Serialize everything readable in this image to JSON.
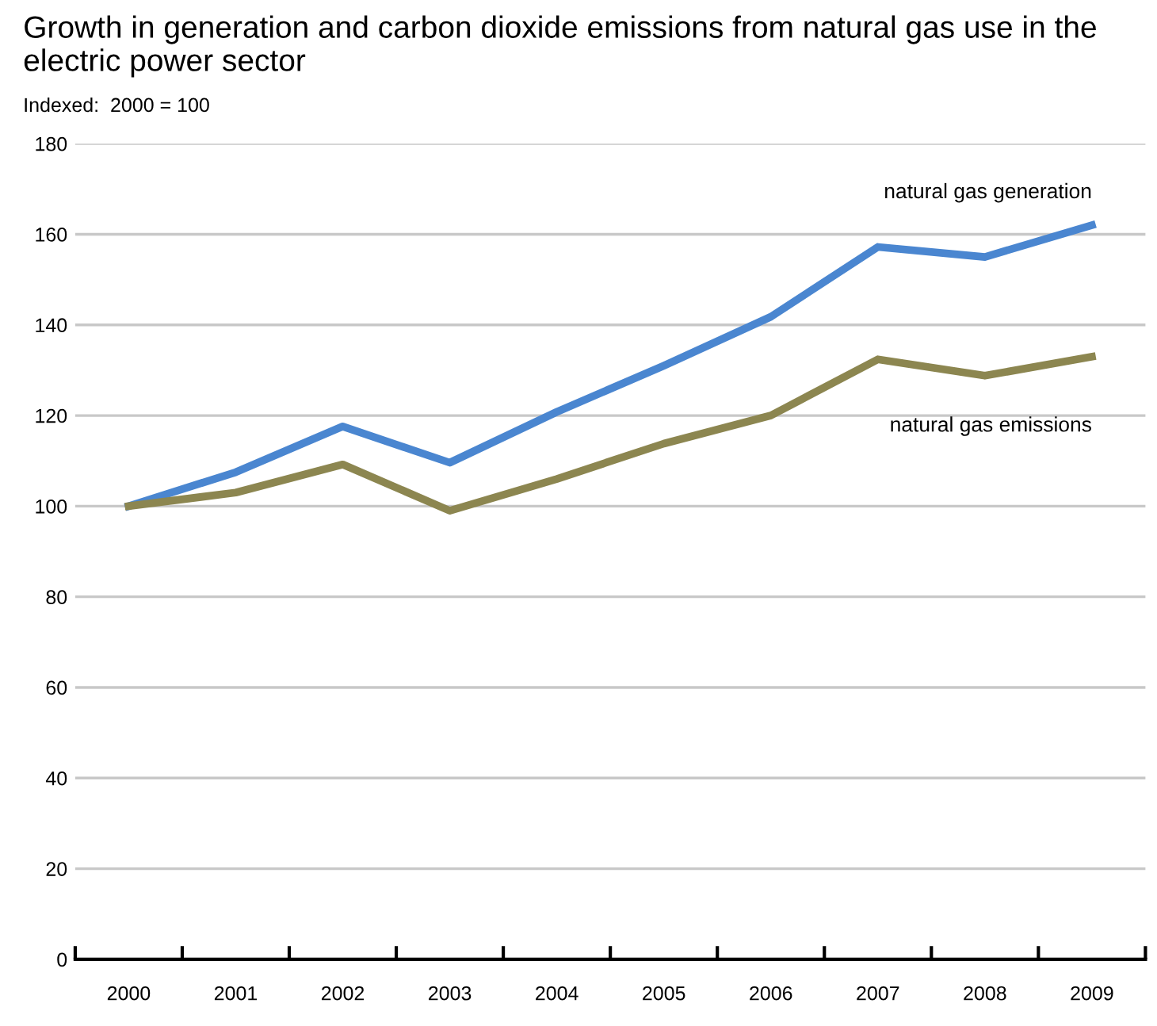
{
  "chart_data": {
    "type": "line",
    "title": "Growth in generation and carbon dioxide emissions from natural gas use in the electric power sector",
    "subtitle": "Indexed:  2000 = 100",
    "categories": [
      "2000",
      "2001",
      "2002",
      "2003",
      "2004",
      "2005",
      "2006",
      "2007",
      "2008",
      "2009"
    ],
    "series": [
      {
        "name": "natural gas generation",
        "color": "#4a86d0",
        "values": [
          100,
          107.5,
          117.6,
          109.6,
          120.8,
          131,
          141.8,
          157.2,
          155,
          162
        ]
      },
      {
        "name": "natural gas emissions",
        "color": "#8c8650",
        "values": [
          100,
          103,
          109.2,
          99,
          106,
          113.8,
          120,
          132.4,
          128.8,
          133
        ]
      }
    ],
    "ylim": [
      0,
      180
    ],
    "yticks": [
      0,
      20,
      40,
      60,
      80,
      100,
      120,
      140,
      160,
      180
    ],
    "grid": "y",
    "legend": false
  }
}
